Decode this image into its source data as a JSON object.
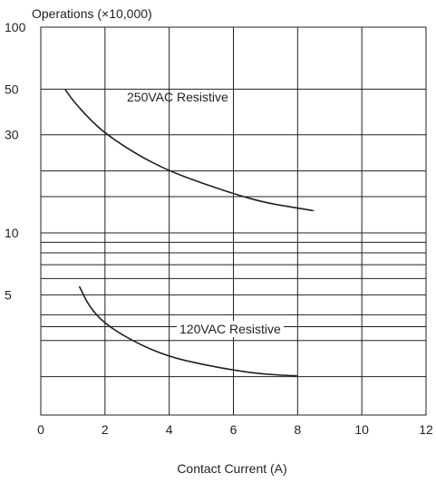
{
  "chart_data": {
    "type": "line",
    "title": "",
    "ylabel": "Operations (×10,000)",
    "xlabel": "Contact Current (A)",
    "xlim": [
      0,
      12
    ],
    "ylim": [
      1,
      100
    ],
    "yscale": "log",
    "grid": true,
    "x_ticks": [
      0,
      2,
      4,
      6,
      8,
      10,
      12
    ],
    "y_tick_labels": [
      {
        "value": 100,
        "label": "100"
      },
      {
        "value": 50,
        "label": "50"
      },
      {
        "value": 30,
        "label": "30"
      },
      {
        "value": 10,
        "label": "10"
      },
      {
        "value": 5,
        "label": "5"
      }
    ],
    "y_gridlines": [
      100,
      50,
      30,
      20,
      15,
      10,
      9,
      8,
      7,
      6,
      5,
      4,
      3.5,
      3,
      2
    ],
    "series": [
      {
        "name": "250VAC Resistive",
        "color": "#231f20",
        "x": [
          0.75,
          1,
          1.5,
          2,
          3,
          4,
          5,
          6,
          7,
          8,
          8.5
        ],
        "y": [
          50,
          44,
          36,
          30.5,
          24,
          20,
          17.5,
          15.5,
          14,
          13.2,
          12.8
        ]
      },
      {
        "name": "120VAC Resistive",
        "color": "#231f20",
        "x": [
          1.2,
          1.5,
          2,
          3,
          4,
          5,
          6,
          7,
          8
        ],
        "y": [
          5.5,
          4.4,
          3.6,
          2.9,
          2.5,
          2.3,
          2.15,
          2.05,
          2.02
        ]
      }
    ]
  }
}
